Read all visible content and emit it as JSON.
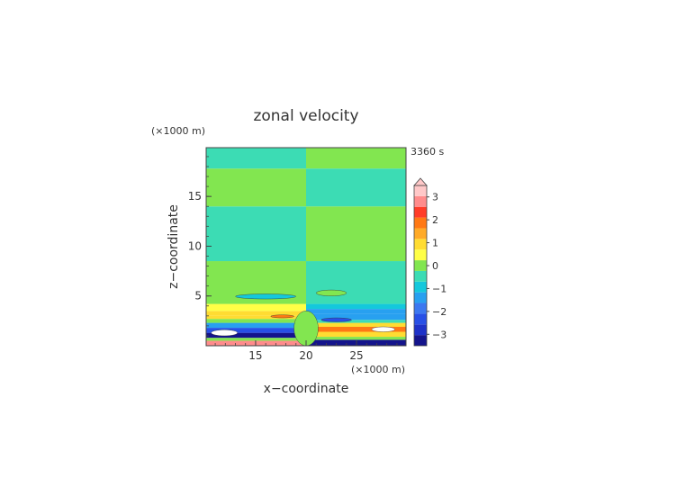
{
  "chart_data": {
    "type": "heatmap",
    "title": "zonal velocity",
    "time_label": "3360 s",
    "xlabel": "x−coordinate",
    "ylabel": "z−coordinate",
    "x_unit": "(×1000 m)",
    "y_unit": "(×1000 m)",
    "xlim": [
      10.1,
      29.9
    ],
    "ylim": [
      0,
      19.9
    ],
    "x_ticks": [
      {
        "v": 15,
        "label": "15"
      },
      {
        "v": 20,
        "label": "20"
      },
      {
        "v": 25,
        "label": "25"
      }
    ],
    "y_ticks": [
      {
        "v": 5,
        "label": "5"
      },
      {
        "v": 10,
        "label": "10"
      },
      {
        "v": 15,
        "label": "15"
      }
    ],
    "colorbar": {
      "levels": [
        -3.5,
        -3,
        -2.5,
        -2,
        -1.5,
        -1,
        -0.5,
        0,
        0.5,
        1,
        1.5,
        2,
        2.5,
        3,
        3.5
      ],
      "colors": [
        "#14148c",
        "#1e32c8",
        "#2850e6",
        "#3c78f0",
        "#28a0f0",
        "#14c8dc",
        "#3cdcb4",
        "#82e650",
        "#ffff46",
        "#ffdc32",
        "#ffaa28",
        "#ff7814",
        "#ff3c28",
        "#ff8c8c",
        "#ffc8c8"
      ],
      "tick_labels": [
        {
          "v": 3,
          "label": "3"
        },
        {
          "v": 2,
          "label": "2"
        },
        {
          "v": 1,
          "label": "1"
        },
        {
          "v": 0,
          "label": "0"
        },
        {
          "v": -1,
          "label": "−1"
        },
        {
          "v": -2,
          "label": "−2"
        },
        {
          "v": -3,
          "label": "−3"
        }
      ],
      "extend": "max"
    },
    "bands_left": [
      {
        "z0": 0.0,
        "z1": 0.5,
        "v": 3.2
      },
      {
        "z0": 0.5,
        "z1": 0.8,
        "v": 0.3
      },
      {
        "z0": 0.8,
        "z1": 1.3,
        "v": -3.2
      },
      {
        "z0": 1.3,
        "z1": 1.8,
        "v": -2.3
      },
      {
        "z0": 1.8,
        "z1": 2.3,
        "v": -1.2
      },
      {
        "z0": 2.3,
        "z1": 2.7,
        "v": 0.3
      },
      {
        "z0": 2.7,
        "z1": 3.0,
        "v": 1.1
      },
      {
        "z0": 3.0,
        "z1": 3.5,
        "v": 1.3
      },
      {
        "z0": 3.5,
        "z1": 4.2,
        "v": 0.7
      },
      {
        "z0": 4.2,
        "z1": 8.5,
        "v": 0.3
      },
      {
        "z0": 8.5,
        "z1": 14.0,
        "v": -0.3
      },
      {
        "z0": 14.0,
        "z1": 17.8,
        "v": 0.3
      },
      {
        "z0": 17.8,
        "z1": 19.9,
        "v": -0.3
      }
    ],
    "bands_right": [
      {
        "z0": 0.0,
        "z1": 0.6,
        "v": -3.2
      },
      {
        "z0": 0.6,
        "z1": 0.9,
        "v": 0.3
      },
      {
        "z0": 0.9,
        "z1": 1.4,
        "v": 1.4
      },
      {
        "z0": 1.4,
        "z1": 1.9,
        "v": 2.3
      },
      {
        "z0": 1.9,
        "z1": 2.3,
        "v": 1.2
      },
      {
        "z0": 2.3,
        "z1": 2.6,
        "v": -0.3
      },
      {
        "z0": 2.6,
        "z1": 3.2,
        "v": -1.3
      },
      {
        "z0": 3.2,
        "z1": 3.7,
        "v": -1.1
      },
      {
        "z0": 3.7,
        "z1": 4.2,
        "v": -0.7
      },
      {
        "z0": 4.2,
        "z1": 8.5,
        "v": -0.3
      },
      {
        "z0": 8.5,
        "z1": 14.0,
        "v": 0.3
      },
      {
        "z0": 14.0,
        "z1": 17.8,
        "v": -0.3
      },
      {
        "z0": 17.8,
        "z1": 19.9,
        "v": 0.3
      }
    ],
    "features": [
      {
        "x0": 10.6,
        "x1": 13.2,
        "z0": 1.0,
        "z1": 1.6,
        "v": 3.6
      },
      {
        "x0": 26.5,
        "x1": 28.8,
        "z0": 1.4,
        "z1": 1.9,
        "v": 3.6
      },
      {
        "x0": 16.5,
        "x1": 18.8,
        "z0": 2.8,
        "z1": 3.1,
        "v": 2.2
      },
      {
        "x0": 21.5,
        "x1": 24.5,
        "z0": 2.4,
        "z1": 2.8,
        "v": -2.2
      },
      {
        "x0": 13.0,
        "x1": 19.0,
        "z0": 4.7,
        "z1": 5.2,
        "v": -0.7
      },
      {
        "x0": 21.0,
        "x1": 24.0,
        "z0": 5.0,
        "z1": 5.6,
        "v": 0.3
      },
      {
        "x0": 18.8,
        "x1": 21.2,
        "z0": 0.0,
        "z1": 3.5,
        "v": 0.3
      }
    ]
  }
}
